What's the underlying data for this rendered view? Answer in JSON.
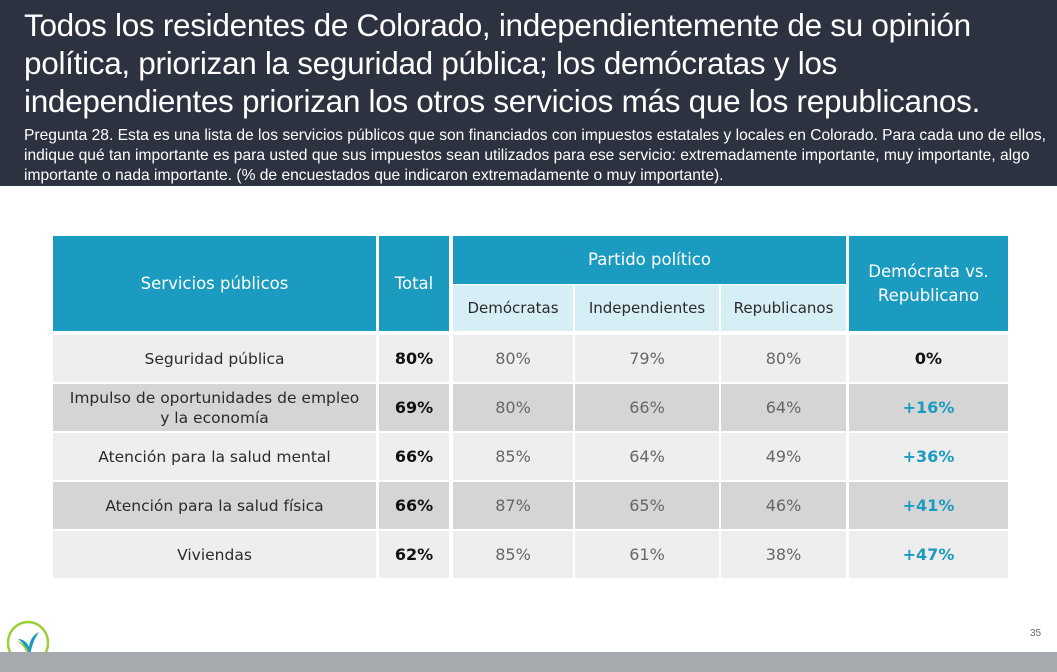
{
  "header": {
    "title": "Todos los residentes de Colorado, independientemente de su opinión política, priorizan la seguridad pública; los demócratas y los independientes priorizan los otros servicios más que los republicanos.",
    "subtitle": "Pregunta 28. Esta es una lista de los servicios públicos que son financiados con impuestos estatales y locales en Colorado. Para cada uno de ellos, indique qué tan importante es para usted que sus impuestos sean utilizados para ese servicio: extremadamente importante, muy importante, algo importante o nada importante. (% de encuestados que indicaron extremadamente o muy importante)."
  },
  "colors": {
    "header_bg": "#2d3240",
    "table_header": "#1a9bbf",
    "subheader": "#d6eef6",
    "row_light": "#eeeeee",
    "row_dark": "#d5d5d6",
    "positive": "#1a9bbf",
    "neutral": "#111111"
  },
  "chart_data": {
    "type": "table",
    "headers": {
      "service": "Servicios públicos",
      "total": "Total",
      "party_group": "Partido político",
      "democrats": "Demócratas",
      "independents": "Independientes",
      "republicans": "Republicanos",
      "diff": "Demócrata vs. Republicano"
    },
    "rows": [
      {
        "service": "Seguridad pública",
        "total": "80%",
        "democrats": "80%",
        "independents": "79%",
        "republicans": "80%",
        "diff": "0%",
        "diff_value": 0
      },
      {
        "service": "Impulso de oportunidades de empleo y la economía",
        "total": "69%",
        "democrats": "80%",
        "independents": "66%",
        "republicans": "64%",
        "diff": "+16%",
        "diff_value": 16
      },
      {
        "service": "Atención para la salud mental",
        "total": "66%",
        "democrats": "85%",
        "independents": "64%",
        "republicans": "49%",
        "diff": "+36%",
        "diff_value": 36
      },
      {
        "service": "Atención para la salud física",
        "total": "66%",
        "democrats": "87%",
        "independents": "65%",
        "republicans": "46%",
        "diff": "+41%",
        "diff_value": 41
      },
      {
        "service": "Viviendas",
        "total": "62%",
        "democrats": "85%",
        "independents": "61%",
        "republicans": "38%",
        "diff": "+47%",
        "diff_value": 47
      }
    ]
  },
  "footer": {
    "page_number": "35",
    "logo_icon": "leaf-logo-icon"
  }
}
